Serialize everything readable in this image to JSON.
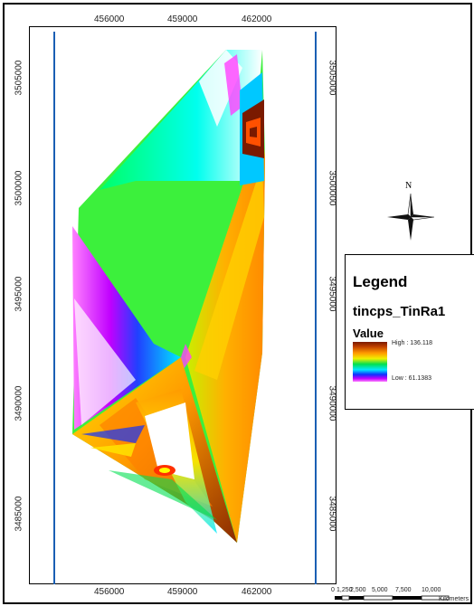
{
  "map": {
    "x_ticks": [
      "456000",
      "459000",
      "462000"
    ],
    "y_ticks": [
      "3505000",
      "3500000",
      "3495000",
      "3490000",
      "3485000"
    ]
  },
  "north_arrow": {
    "label": "N"
  },
  "legend": {
    "title": "Legend",
    "layer_name": "tincps_TinRa1",
    "field": "Value",
    "high_label": "High : 136.118",
    "low_label": "Low : 61.1383",
    "ramp_colors": [
      "#7a1a00",
      "#ff9a00",
      "#f0f000",
      "#00e050",
      "#00e8ff",
      "#1030ff",
      "#c000ff",
      "#ff80ff"
    ]
  },
  "scale_bar": {
    "labels": [
      "0",
      "1,250",
      "2,500",
      "5,000",
      "7,500",
      "10,000"
    ],
    "units": "Kilometers"
  },
  "colors": {
    "frame": "#000000",
    "neatline": "#1a5fb4"
  }
}
